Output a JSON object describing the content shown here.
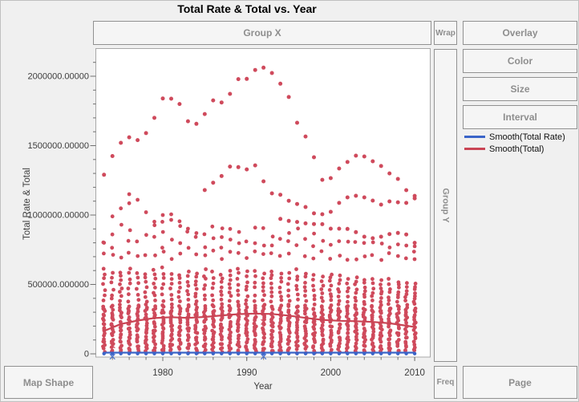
{
  "window": {
    "title": "Total Rate & Total vs. Year",
    "bg": "#f0f0f0"
  },
  "zones": {
    "group_x": "Group X",
    "wrap": "Wrap",
    "overlay": "Overlay",
    "color": "Color",
    "size": "Size",
    "interval": "Interval",
    "group_y": "Group Y",
    "map_shape": "Map Shape",
    "freq": "Freq",
    "page": "Page"
  },
  "legend": {
    "items": [
      {
        "label": "Smooth(Total Rate)",
        "color": "#3a64c8"
      },
      {
        "label": "Smooth(Total)",
        "color": "#c94454"
      }
    ]
  },
  "chart_data": {
    "type": "scatter",
    "title": "Total Rate & Total vs. Year",
    "xlabel": "Year",
    "ylabel": "Total Rate & Total",
    "xlim": [
      1972,
      2012
    ],
    "ylim": [
      -25000,
      2200000
    ],
    "grid": false,
    "legend_position": "right",
    "point_color": "#cf4a5c",
    "smooth_total_color": "#c94454",
    "smooth_rate_color": "#3a64c8",
    "axis_text_color": "#3c3c3c",
    "x_ticks": {
      "major": [
        1980,
        1990,
        2000,
        2010
      ],
      "labels": [
        "1980",
        "1990",
        "2000",
        "2010"
      ],
      "minor_step": 2
    },
    "y_ticks": {
      "major_values": [
        0,
        500000,
        1000000,
        1500000,
        2000000
      ],
      "labels": [
        "0",
        "500000.000000",
        "1000000.00000",
        "1500000.00000",
        "2000000.00000"
      ],
      "minor_step": 100000
    },
    "years": [
      1973,
      1974,
      1975,
      1976,
      1977,
      1978,
      1979,
      1980,
      1981,
      1982,
      1983,
      1984,
      1985,
      1986,
      1987,
      1988,
      1989,
      1990,
      1991,
      1992,
      1993,
      1994,
      1995,
      1996,
      1997,
      1998,
      1999,
      2000,
      2001,
      2002,
      2003,
      2004,
      2005,
      2006,
      2007,
      2008,
      2009,
      2010
    ],
    "series": [
      {
        "name": "Total - high trajectory",
        "points": [
          [
            1973,
            1290000
          ],
          [
            1974,
            1425000
          ],
          [
            1975,
            1520000
          ],
          [
            1976,
            1560000
          ],
          [
            1977,
            1540000
          ],
          [
            1978,
            1590000
          ],
          [
            1979,
            1700000
          ],
          [
            1980,
            1840000
          ],
          [
            1981,
            1838000
          ],
          [
            1982,
            1800000
          ],
          [
            1983,
            1676000
          ],
          [
            1984,
            1657000
          ],
          [
            1985,
            1728000
          ],
          [
            1986,
            1826000
          ],
          [
            1987,
            1811000
          ],
          [
            1988,
            1873000
          ],
          [
            1989,
            1979000
          ],
          [
            1990,
            1981000
          ],
          [
            1991,
            2045000
          ],
          [
            1992,
            2062000
          ],
          [
            1993,
            2023000
          ],
          [
            1994,
            1946000
          ],
          [
            1995,
            1850000
          ],
          [
            1996,
            1665000
          ],
          [
            1997,
            1566000
          ],
          [
            1998,
            1416000
          ],
          [
            1999,
            1254000
          ],
          [
            2000,
            1266000
          ],
          [
            2001,
            1335000
          ],
          [
            2002,
            1382000
          ],
          [
            2003,
            1428000
          ],
          [
            2004,
            1422000
          ],
          [
            2005,
            1387000
          ],
          [
            2006,
            1353000
          ],
          [
            2007,
            1300000
          ],
          [
            2008,
            1260000
          ],
          [
            2009,
            1179000
          ],
          [
            2010,
            1138000
          ]
        ]
      },
      {
        "name": "Total - mid trajectory",
        "points": [
          [
            1985,
            1180000
          ],
          [
            1986,
            1233000
          ],
          [
            1987,
            1281000
          ],
          [
            1988,
            1349000
          ],
          [
            1989,
            1345000
          ],
          [
            1990,
            1329000
          ],
          [
            1991,
            1358000
          ],
          [
            1992,
            1243000
          ],
          [
            1993,
            1156000
          ],
          [
            1994,
            1146000
          ],
          [
            1995,
            1103000
          ],
          [
            1996,
            1080000
          ],
          [
            1997,
            1058000
          ],
          [
            1998,
            1012000
          ],
          [
            1999,
            1006000
          ],
          [
            2000,
            1023000
          ],
          [
            2001,
            1087000
          ],
          [
            2002,
            1127000
          ],
          [
            2003,
            1139000
          ],
          [
            2004,
            1127000
          ],
          [
            2005,
            1104000
          ],
          [
            2006,
            1075000
          ],
          [
            2007,
            1098000
          ],
          [
            2008,
            1092000
          ],
          [
            2009,
            1087000
          ],
          [
            2010,
            1120000
          ]
        ]
      },
      {
        "name": "Total - lower trajectory",
        "points": [
          [
            1994,
            972000
          ],
          [
            1995,
            958000
          ],
          [
            1996,
            950000
          ],
          [
            1997,
            940000
          ],
          [
            1998,
            935000
          ],
          [
            1999,
            934000
          ],
          [
            2000,
            902000
          ],
          [
            2001,
            902000
          ],
          [
            2002,
            900000
          ],
          [
            2003,
            877000
          ],
          [
            2004,
            844000
          ],
          [
            2005,
            833000
          ],
          [
            2006,
            844000
          ],
          [
            2007,
            863000
          ],
          [
            2008,
            871000
          ],
          [
            2009,
            860000
          ],
          [
            2010,
            800000
          ]
        ]
      }
    ],
    "extra_points": [
      [
        1973,
        800000
      ],
      [
        1974,
        990000
      ],
      [
        1975,
        1048000
      ],
      [
        1976,
        1085000
      ],
      [
        1976,
        1150000
      ],
      [
        1977,
        1110000
      ],
      [
        1978,
        1020000
      ],
      [
        1979,
        952000
      ],
      [
        1980,
        1000000
      ],
      [
        1981,
        1005000
      ],
      [
        1982,
        955000
      ],
      [
        1983,
        902000
      ],
      [
        1984,
        870000
      ],
      [
        2010,
        775000
      ]
    ],
    "dense_columns": {
      "bottom_count": 22,
      "bottom_range": [
        15000,
        350000
      ],
      "upper_min": 365000,
      "upper_tops": [
        630000,
        612000,
        598000,
        640000,
        605000,
        588000,
        615000,
        632000,
        600000,
        585000,
        610000,
        595000,
        620000,
        605000,
        590000,
        612000,
        628000,
        605000,
        618000,
        600000,
        615000,
        592000,
        605000,
        618000,
        600000,
        585000,
        570000,
        588000,
        572000,
        556000,
        568000,
        545000,
        552000,
        538000,
        545000,
        530000,
        522000,
        515000
      ],
      "upper_counts": [
        7,
        6,
        8,
        7,
        6,
        7,
        8,
        7,
        6,
        7,
        7,
        8,
        7,
        6,
        7,
        8,
        7,
        7,
        6,
        7,
        8,
        7,
        6,
        7,
        7,
        6,
        7,
        8,
        7,
        6,
        7,
        7,
        6,
        7,
        6,
        7,
        6,
        7
      ],
      "extra_min": 660000,
      "extra_tops": [
        820000,
        900000,
        960000,
        940000,
        900000,
        880000,
        950000,
        1000000,
        1005000,
        960000,
        905000,
        880000,
        920000,
        950000,
        965000,
        940000,
        930000,
        900000,
        940000,
        920000,
        900000,
        880000,
        940000,
        950000,
        900000,
        880000,
        860000,
        850000,
        840000,
        830000,
        820000,
        840000,
        830000,
        820000,
        810000,
        800000,
        790000,
        780000
      ],
      "extra_counts": [
        2,
        3,
        2,
        3,
        2,
        2,
        3,
        4,
        3,
        3,
        2,
        2,
        3,
        3,
        4,
        3,
        3,
        2,
        3,
        3,
        3,
        2,
        3,
        2,
        2,
        3,
        2,
        2,
        2,
        2,
        2,
        2,
        2,
        2,
        2,
        2,
        2,
        2
      ]
    },
    "smooth_total": [
      [
        1973,
        165000
      ],
      [
        1975,
        215000
      ],
      [
        1977,
        240000
      ],
      [
        1979,
        258000
      ],
      [
        1981,
        264000
      ],
      [
        1983,
        259000
      ],
      [
        1985,
        266000
      ],
      [
        1987,
        277000
      ],
      [
        1989,
        286000
      ],
      [
        1991,
        290000
      ],
      [
        1993,
        287000
      ],
      [
        1995,
        276000
      ],
      [
        1997,
        259000
      ],
      [
        1999,
        245000
      ],
      [
        2001,
        238000
      ],
      [
        2003,
        235000
      ],
      [
        2005,
        230000
      ],
      [
        2007,
        220000
      ],
      [
        2009,
        203000
      ],
      [
        2010,
        193000
      ]
    ],
    "smooth_total_rate": [
      [
        1973,
        8500
      ],
      [
        2010,
        8500
      ]
    ],
    "rate_points_value": 1500,
    "excluded_x_markers": {
      "total": [
        [
          1974,
          60000
        ],
        [
          1992,
          230000
        ]
      ],
      "rate": [
        [
          1974,
          -20000
        ],
        [
          1992,
          -20000
        ]
      ]
    }
  }
}
